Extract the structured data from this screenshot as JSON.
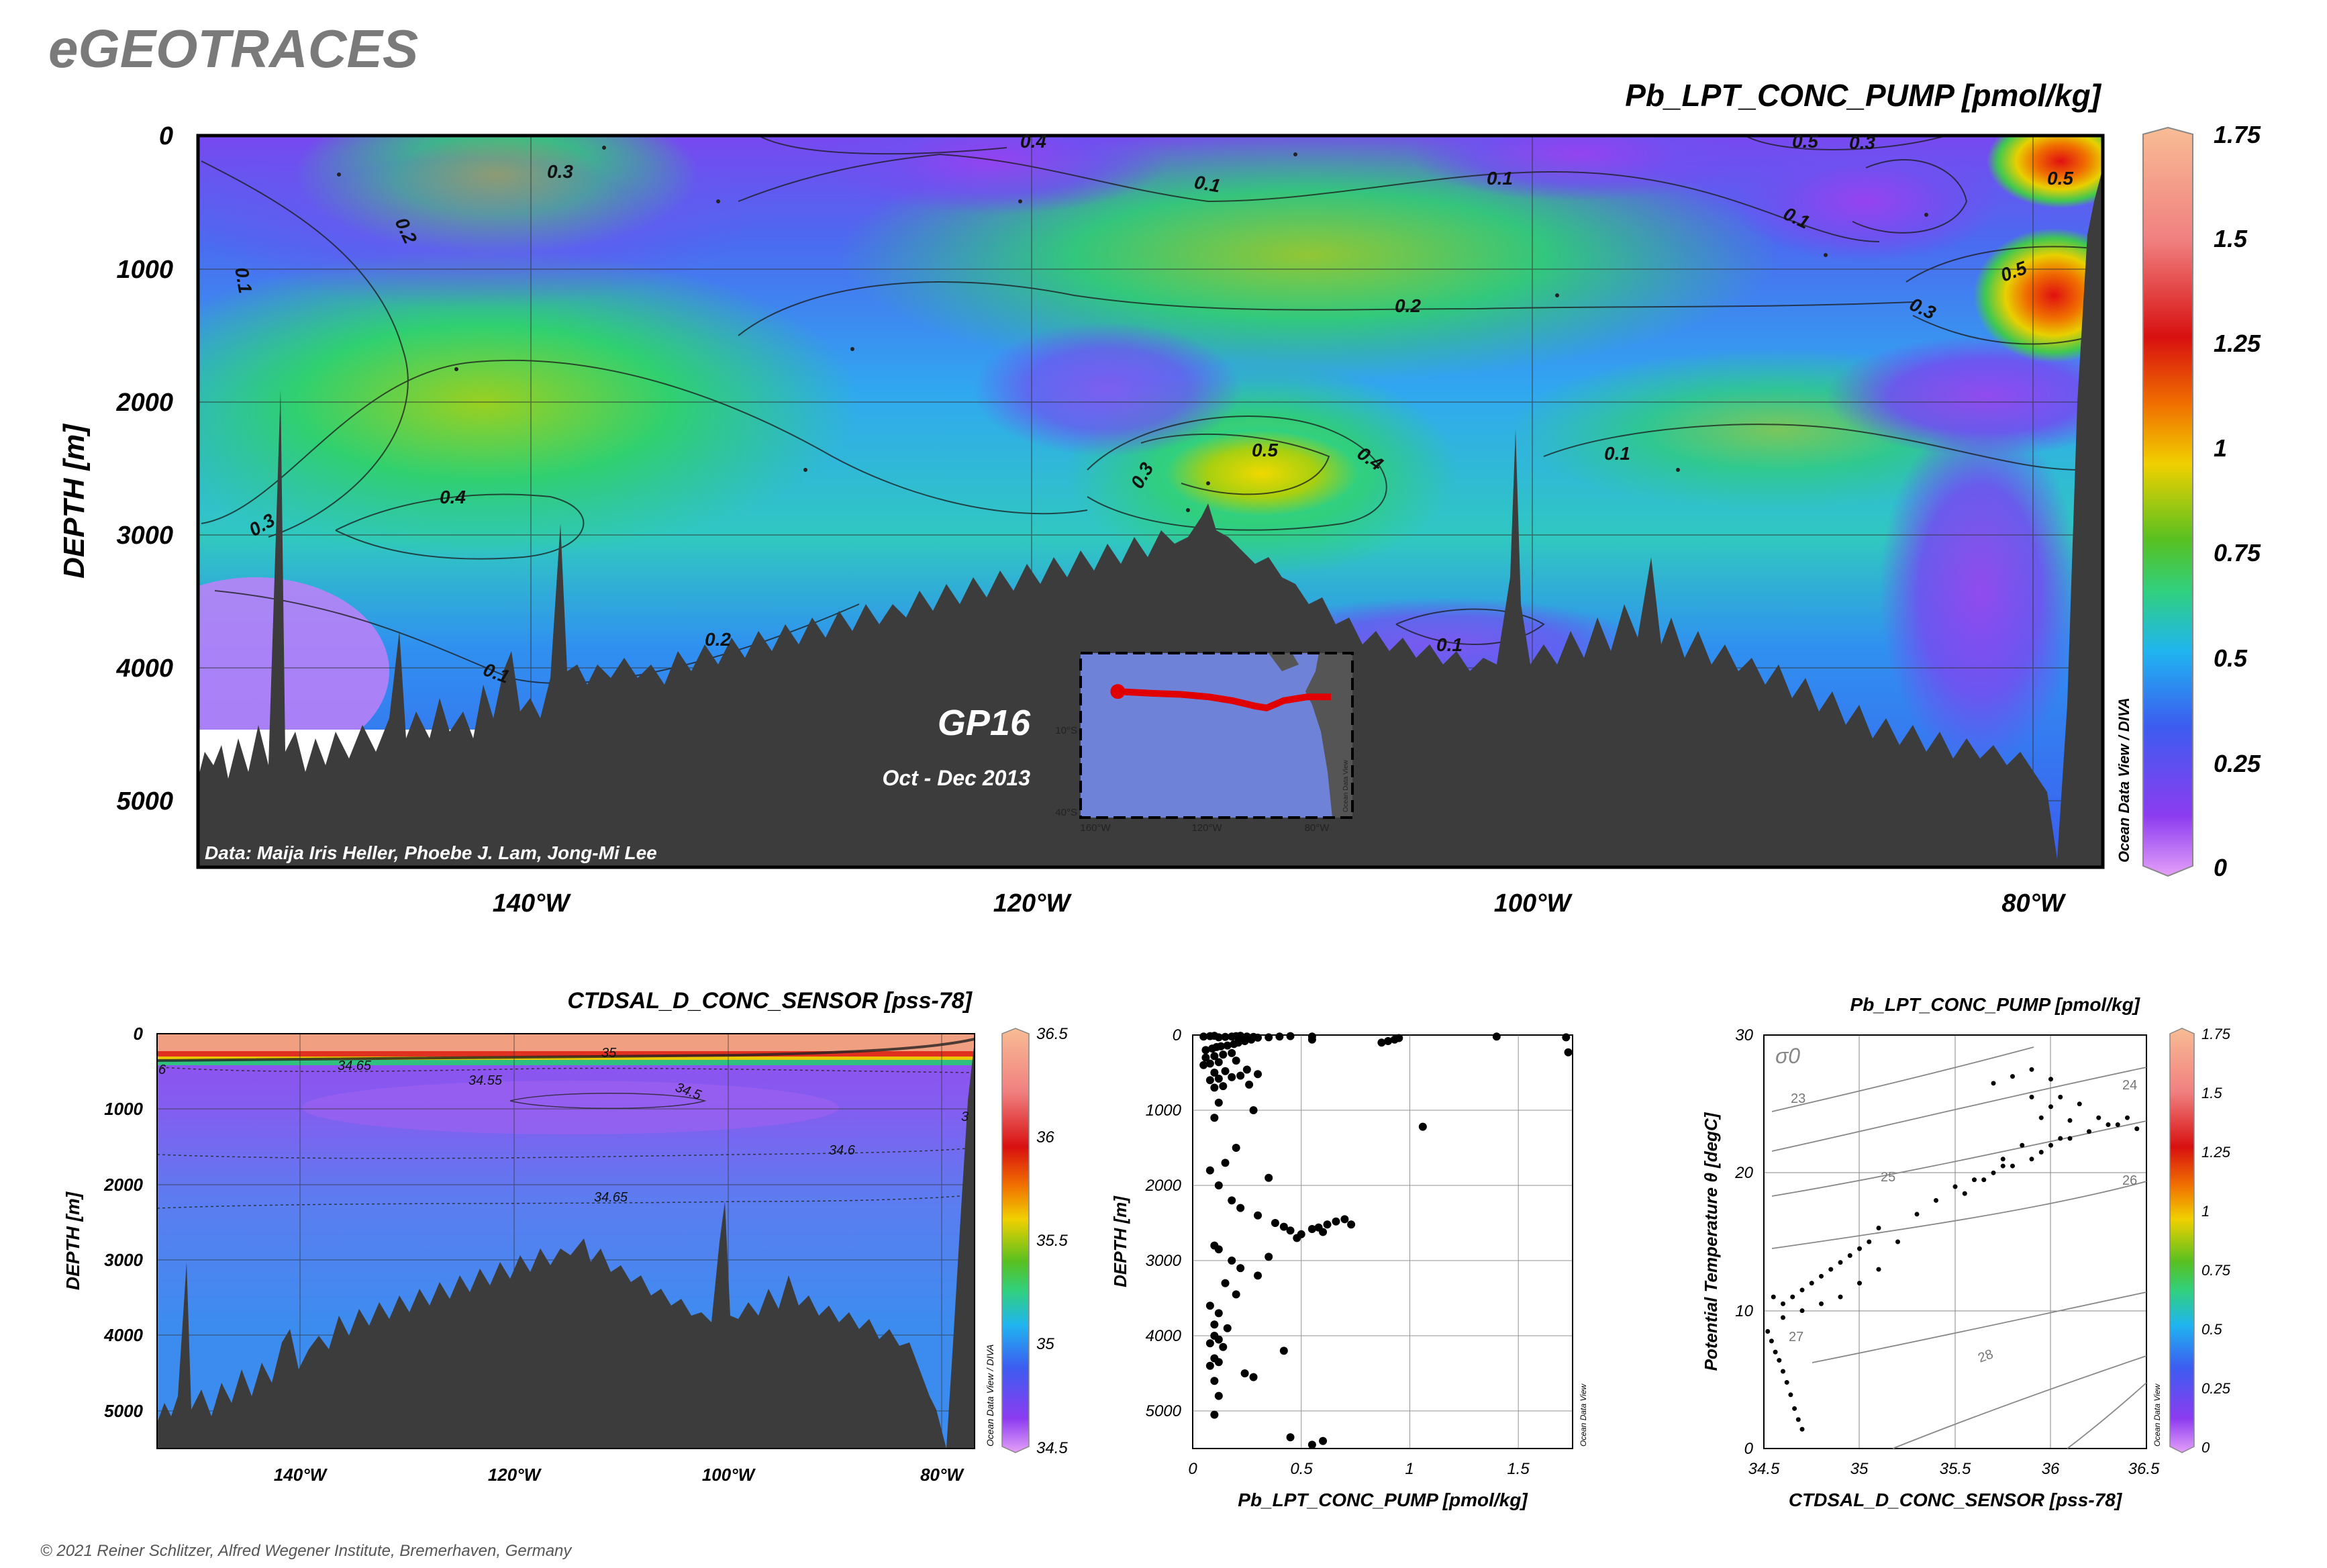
{
  "header": {
    "logo": "eGEOTRACES",
    "copyright": "© 2021 Reiner Schlitzer, Alfred Wegener Institute, Bremerhaven, Germany"
  },
  "colors": {
    "bathymetry": "#3c3c3c",
    "colormap": [
      "#e4a0f8",
      "#8c3cf0",
      "#3c5cf0",
      "#20b4f0",
      "#30d080",
      "#58c020",
      "#f0d000",
      "#f07000",
      "#d81010",
      "#f08080",
      "#f8bc94"
    ],
    "track": "#e00000"
  },
  "chart_data": [
    {
      "id": "main_section",
      "type": "heatmap",
      "title": "Pb_LPT_CONC_PUMP [pmol/kg]",
      "ylabel": "DEPTH [m]",
      "x_ticks": [
        "140°W",
        "120°W",
        "100°W",
        "80°W"
      ],
      "y_ticks": [
        "0",
        "1000",
        "2000",
        "3000",
        "4000",
        "5000"
      ],
      "xlim": [
        -153.4,
        -76.9
      ],
      "ylim": [
        0,
        5500
      ],
      "colorbar": {
        "ticks": [
          "0",
          "0.25",
          "0.5",
          "0.75",
          "1",
          "1.25",
          "1.5",
          "1.75"
        ],
        "range": [
          0,
          1.75
        ]
      },
      "contour_labels": [
        "0.1",
        "0.2",
        "0.3",
        "0.4",
        "0.5"
      ],
      "section_name": "GP16",
      "cruise_dates": "Oct - Dec 2013",
      "data_credit": "Data: Maija Iris Heller, Phoebe J. Lam, Jong-Mi Lee",
      "watermark": "Ocean Data View / DIVA",
      "inset_map": {
        "lat_ticks": [
          "10°S",
          "40°S"
        ],
        "lon_ticks": [
          "160°W",
          "120°W",
          "80°W"
        ],
        "watermark": "Ocean Data View",
        "track_lon": [
          -152,
          -140,
          -130,
          -120,
          -112,
          -104,
          -100,
          -94,
          -86,
          -77.5
        ],
        "track_lat": [
          -10.5,
          -11,
          -11.3,
          -12,
          -13,
          -14.5,
          -15,
          -13,
          -12,
          -12
        ]
      }
    },
    {
      "id": "salinity_section",
      "type": "heatmap",
      "title": "CTDSAL_D_CONC_SENSOR [pss-78]",
      "ylabel": "DEPTH [m]",
      "x_ticks": [
        "140°W",
        "120°W",
        "100°W",
        "80°W"
      ],
      "y_ticks": [
        "0",
        "1000",
        "2000",
        "3000",
        "4000",
        "5000"
      ],
      "xlim": [
        -153.4,
        -76.9
      ],
      "ylim": [
        0,
        5500
      ],
      "colorbar": {
        "ticks": [
          "34.5",
          "35",
          "35.5",
          "36",
          "36.5"
        ],
        "range": [
          34.5,
          36.5
        ]
      },
      "contour_labels": [
        "34.65",
        "34.55",
        "34.5",
        "34.6",
        "34.65",
        "35",
        "3",
        "6"
      ],
      "watermark": "Ocean Data View / DIVA"
    },
    {
      "id": "profile_scatter",
      "type": "scatter",
      "xlabel": "Pb_LPT_CONC_PUMP [pmol/kg]",
      "ylabel": "DEPTH [m]",
      "x_ticks": [
        "0",
        "0.5",
        "1",
        "1.5"
      ],
      "y_ticks": [
        "0",
        "1000",
        "2000",
        "3000",
        "4000",
        "5000"
      ],
      "xlim": [
        0,
        1.75
      ],
      "ylim": [
        0,
        5500
      ],
      "watermark": "Ocean Data View",
      "x": [
        0.05,
        0.08,
        0.1,
        0.12,
        0.15,
        0.18,
        0.2,
        0.22,
        0.25,
        0.28,
        0.3,
        0.35,
        0.4,
        0.45,
        0.55,
        0.87,
        0.9,
        0.93,
        0.95,
        1.4,
        1.72,
        1.73,
        0.06,
        0.09,
        0.11,
        0.13,
        0.16,
        0.19,
        0.21,
        0.24,
        0.27,
        0.06,
        0.1,
        0.14,
        0.18,
        0.05,
        0.08,
        0.12,
        0.2,
        0.1,
        0.15,
        0.25,
        0.08,
        0.12,
        0.18,
        0.22,
        0.3,
        0.1,
        0.14,
        0.26,
        0.55,
        1.06,
        0.12,
        0.28,
        0.1,
        0.2,
        0.15,
        0.08,
        0.35,
        0.12,
        0.18,
        0.22,
        0.3,
        0.38,
        0.42,
        0.45,
        0.5,
        0.55,
        0.58,
        0.62,
        0.66,
        0.7,
        0.73,
        0.6,
        0.48,
        0.1,
        0.12,
        0.18,
        0.22,
        0.3,
        0.35,
        0.15,
        0.2,
        0.08,
        0.12,
        0.1,
        0.16,
        0.1,
        0.12,
        0.08,
        0.14,
        0.1,
        0.12,
        0.08,
        0.1,
        0.42,
        0.24,
        0.28,
        0.12,
        0.1,
        0.45,
        0.55,
        0.6
      ],
      "y": [
        20,
        15,
        10,
        30,
        25,
        20,
        15,
        10,
        20,
        25,
        35,
        30,
        20,
        15,
        20,
        100,
        80,
        60,
        40,
        20,
        30,
        230,
        200,
        180,
        160,
        150,
        140,
        120,
        100,
        80,
        60,
        300,
        280,
        260,
        240,
        400,
        380,
        360,
        340,
        500,
        480,
        460,
        600,
        580,
        560,
        540,
        520,
        700,
        680,
        660,
        60,
        1220,
        900,
        1000,
        1100,
        1500,
        1700,
        1800,
        1900,
        2000,
        2200,
        2300,
        2400,
        2500,
        2550,
        2600,
        2650,
        2580,
        2560,
        2520,
        2480,
        2450,
        2520,
        2620,
        2700,
        2800,
        2850,
        3000,
        3100,
        3200,
        2950,
        3300,
        3450,
        3600,
        3700,
        3850,
        3900,
        4000,
        4050,
        4100,
        4150,
        4300,
        4350,
        4400,
        4600,
        4200,
        4500,
        4550,
        4800,
        5050,
        5350,
        5450,
        5400
      ]
    },
    {
      "id": "ts_diagram",
      "type": "scatter",
      "title": "Pb_LPT_CONC_PUMP [pmol/kg]",
      "xlabel": "CTDSAL_D_CONC_SENSOR [pss-78]",
      "ylabel": "Potential Temperature θ [degC]",
      "x_ticks": [
        "34.5",
        "35",
        "35.5",
        "36",
        "36.5"
      ],
      "y_ticks": [
        "0",
        "10",
        "20",
        "30"
      ],
      "xlim": [
        34.5,
        36.5
      ],
      "ylim": [
        0,
        30
      ],
      "isopycnal_label": "σ0",
      "isopycnals": [
        "23",
        "24",
        "25",
        "26",
        "27",
        "28"
      ],
      "colorbar": {
        "ticks": [
          "0",
          "0.25",
          "0.5",
          "0.75",
          "1",
          "1.25",
          "1.5",
          "1.75"
        ],
        "range": [
          0,
          1.75
        ]
      },
      "watermark": "Ocean Data View",
      "x": [
        34.52,
        34.54,
        34.56,
        34.58,
        34.6,
        34.62,
        34.64,
        34.66,
        34.68,
        34.7,
        34.55,
        34.6,
        34.65,
        34.7,
        34.75,
        34.8,
        34.85,
        34.9,
        34.95,
        35.0,
        35.05,
        35.1,
        34.6,
        34.7,
        34.8,
        34.9,
        35.0,
        35.1,
        35.2,
        35.3,
        35.4,
        35.5,
        35.6,
        35.7,
        35.8,
        35.9,
        36.0,
        36.1,
        36.2,
        36.3,
        36.4,
        35.55,
        35.65,
        35.75,
        35.85,
        35.95,
        36.05,
        36.15,
        36.25,
        36.35,
        36.45,
        35.7,
        35.8,
        35.9,
        36.0,
        35.9,
        36.0,
        36.1,
        35.75,
        35.95,
        36.05
      ],
      "y": [
        8.5,
        7.8,
        7.0,
        6.4,
        5.6,
        4.8,
        3.9,
        2.9,
        2.1,
        1.4,
        11,
        10.5,
        11,
        11.5,
        12,
        12.5,
        13,
        13.5,
        14,
        14.5,
        15,
        16,
        9.5,
        10,
        10.5,
        11,
        12,
        13,
        15,
        17,
        18,
        19,
        19.5,
        20,
        20.5,
        21,
        22,
        22.5,
        23,
        23.5,
        24,
        18.5,
        19.5,
        20.5,
        22,
        24,
        25.5,
        25,
        24,
        23.5,
        23.2,
        26.5,
        27,
        27.5,
        26.8,
        25.5,
        24.8,
        23.8,
        21,
        21.5,
        22.5
      ]
    }
  ]
}
